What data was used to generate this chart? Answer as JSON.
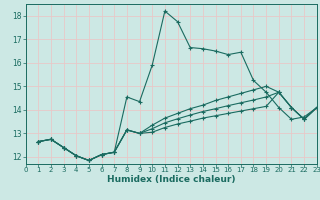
{
  "xlabel": "Humidex (Indice chaleur)",
  "bg_color": "#cce8e4",
  "grid_color": "#e8c8c8",
  "line_color": "#1a6b60",
  "xlim": [
    0,
    23
  ],
  "ylim": [
    11.7,
    18.5
  ],
  "xticks": [
    0,
    1,
    2,
    3,
    4,
    5,
    6,
    7,
    8,
    9,
    10,
    11,
    12,
    13,
    14,
    15,
    16,
    17,
    18,
    19,
    20,
    21,
    22,
    23
  ],
  "yticks": [
    12,
    13,
    14,
    15,
    16,
    17,
    18
  ],
  "series1_x": [
    1,
    2,
    3,
    4,
    5,
    6,
    7,
    8,
    9,
    10,
    11,
    12,
    13,
    14,
    15,
    16,
    17,
    18,
    19,
    20,
    21,
    22,
    23
  ],
  "series1_y": [
    12.65,
    12.75,
    12.4,
    12.05,
    11.85,
    12.1,
    12.2,
    14.55,
    14.35,
    15.9,
    18.2,
    17.75,
    16.65,
    16.6,
    16.5,
    16.35,
    16.45,
    15.25,
    14.75,
    14.1,
    13.6,
    13.7,
    14.1
  ],
  "series2_x": [
    1,
    2,
    3,
    4,
    5,
    6,
    7,
    8,
    9,
    10,
    11,
    12,
    13,
    14,
    15,
    16,
    17,
    18,
    19,
    20,
    21,
    22,
    23
  ],
  "series2_y": [
    12.65,
    12.75,
    12.4,
    12.05,
    11.85,
    12.1,
    12.2,
    13.15,
    13.0,
    13.35,
    13.65,
    13.85,
    14.05,
    14.2,
    14.4,
    14.55,
    14.7,
    14.85,
    15.0,
    14.75,
    14.1,
    13.6,
    14.1
  ],
  "series3_x": [
    1,
    2,
    3,
    4,
    5,
    6,
    7,
    8,
    9,
    10,
    11,
    12,
    13,
    14,
    15,
    16,
    17,
    18,
    19,
    20,
    21,
    22,
    23
  ],
  "series3_y": [
    12.65,
    12.75,
    12.4,
    12.05,
    11.85,
    12.1,
    12.2,
    13.15,
    13.0,
    13.2,
    13.45,
    13.62,
    13.78,
    13.93,
    14.05,
    14.18,
    14.3,
    14.42,
    14.55,
    14.75,
    14.1,
    13.6,
    14.1
  ],
  "series4_x": [
    1,
    2,
    3,
    4,
    5,
    6,
    7,
    8,
    9,
    10,
    11,
    12,
    13,
    14,
    15,
    16,
    17,
    18,
    19,
    20,
    21,
    22,
    23
  ],
  "series4_y": [
    12.65,
    12.75,
    12.4,
    12.05,
    11.85,
    12.1,
    12.2,
    13.15,
    13.0,
    13.05,
    13.25,
    13.4,
    13.52,
    13.65,
    13.75,
    13.85,
    13.95,
    14.05,
    14.15,
    14.75,
    14.1,
    13.6,
    14.1
  ]
}
